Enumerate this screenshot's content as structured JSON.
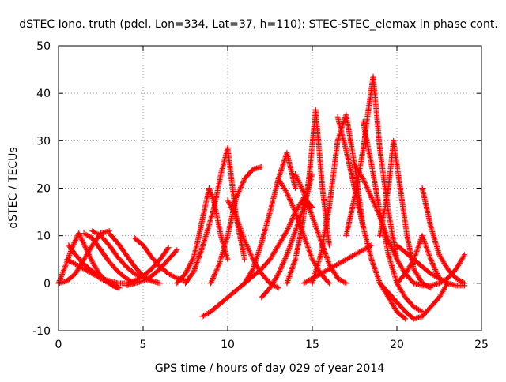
{
  "chart_data": {
    "type": "scatter",
    "title": "dSTEC Iono. truth (pdel, Lon=334, Lat=37, h=110): STEC-STEC_elemax in phase cont.",
    "xlabel": "GPS time / hours of day 029 of year 2014",
    "ylabel": "dSTEC  / TECUs",
    "xlim": [
      0,
      25
    ],
    "ylim": [
      -10,
      50
    ],
    "x_ticks": [
      0,
      5,
      10,
      15,
      20,
      25
    ],
    "y_ticks": [
      -10,
      0,
      10,
      20,
      30,
      40,
      50
    ],
    "grid": true,
    "legend": "none",
    "marker": "+",
    "color": "#ff0000",
    "series": [
      {
        "x": [
          0.0,
          0.4,
          0.8,
          1.2,
          1.6,
          2.0,
          2.4,
          2.8,
          3.2,
          3.6
        ],
        "y": [
          0.0,
          3.5,
          7.5,
          10.5,
          7.5,
          4.5,
          2.0,
          0.5,
          -0.5,
          -1.0
        ]
      },
      {
        "x": [
          0.0,
          0.5,
          1.0,
          1.5,
          2.0,
          2.5,
          3.0
        ],
        "y": [
          0.0,
          0.5,
          2.0,
          5.0,
          8.0,
          10.5,
          11.0
        ]
      },
      {
        "x": [
          0.6,
          1.0,
          1.5,
          2.0,
          2.5,
          3.0,
          3.5
        ],
        "y": [
          8.0,
          6.0,
          4.0,
          2.5,
          1.0,
          0.0,
          -1.0
        ]
      },
      {
        "x": [
          1.5,
          2.0,
          2.5,
          3.0,
          3.5,
          4.0,
          4.5
        ],
        "y": [
          10.5,
          9.5,
          7.0,
          4.5,
          2.5,
          1.0,
          0.0
        ]
      },
      {
        "x": [
          0.5,
          1.0,
          1.5,
          2.0,
          2.5,
          3.0,
          3.5
        ],
        "y": [
          5.0,
          4.0,
          3.0,
          2.0,
          1.0,
          0.5,
          0.0
        ]
      },
      {
        "x": [
          2.0,
          2.5,
          3.0,
          3.5,
          4.0,
          4.5,
          5.0,
          5.5
        ],
        "y": [
          11.0,
          10.0,
          8.0,
          5.5,
          3.5,
          2.0,
          1.0,
          0.5
        ]
      },
      {
        "x": [
          3.0,
          3.5,
          4.0,
          4.5,
          5.0,
          5.5,
          6.0
        ],
        "y": [
          10.5,
          8.5,
          6.0,
          3.5,
          1.5,
          0.5,
          0.0
        ]
      },
      {
        "x": [
          4.5,
          5.0,
          5.5,
          6.0,
          6.5,
          7.0,
          7.5
        ],
        "y": [
          9.5,
          8.0,
          5.5,
          3.5,
          2.0,
          1.0,
          0.5
        ]
      },
      {
        "x": [
          3.5,
          4.0,
          4.5,
          5.0,
          5.5,
          6.0,
          6.5
        ],
        "y": [
          0.0,
          0.0,
          0.5,
          1.5,
          3.0,
          5.0,
          7.5
        ]
      },
      {
        "x": [
          4.0,
          4.5,
          5.0,
          5.5,
          6.0,
          6.5,
          7.0
        ],
        "y": [
          -0.5,
          0.0,
          0.5,
          1.5,
          3.0,
          5.0,
          7.0
        ]
      },
      {
        "x": [
          7.5,
          8.0,
          8.4,
          8.8,
          9.2,
          9.6,
          10.0,
          10.5,
          11.0
        ],
        "y": [
          0.0,
          2.5,
          6.5,
          11.0,
          16.0,
          23.0,
          28.5,
          14.0,
          5.0
        ]
      },
      {
        "x": [
          7.0,
          7.5,
          8.0,
          8.3,
          8.6,
          8.9,
          9.2,
          9.6,
          10.0
        ],
        "y": [
          0.0,
          2.0,
          5.5,
          10.0,
          15.0,
          20.0,
          17.0,
          10.0,
          5.0
        ]
      },
      {
        "x": [
          8.5,
          9.0,
          9.5,
          10.0,
          10.5,
          11.0,
          11.5,
          12.0,
          12.5
        ],
        "y": [
          -7.0,
          -6.0,
          -4.5,
          -3.0,
          -1.5,
          0.0,
          1.5,
          3.0,
          5.0
        ]
      },
      {
        "x": [
          9.0,
          9.5,
          10.0,
          10.5,
          11.0,
          11.5,
          12.0
        ],
        "y": [
          0.0,
          4.0,
          10.0,
          18.0,
          22.0,
          24.0,
          24.5
        ]
      },
      {
        "x": [
          10.0,
          10.5,
          11.0,
          11.5,
          12.0,
          12.5,
          13.0
        ],
        "y": [
          17.5,
          14.0,
          9.0,
          5.0,
          2.0,
          0.0,
          -1.0
        ]
      },
      {
        "x": [
          11.0,
          11.5,
          12.0,
          12.5,
          13.0,
          13.5,
          14.0
        ],
        "y": [
          0.0,
          3.0,
          8.5,
          15.0,
          22.0,
          27.5,
          20.0
        ]
      },
      {
        "x": [
          12.0,
          12.5,
          13.0,
          13.5,
          14.0,
          14.5,
          15.0
        ],
        "y": [
          -3.0,
          -1.0,
          2.0,
          6.0,
          11.0,
          16.0,
          23.0
        ]
      },
      {
        "x": [
          12.5,
          13.0,
          13.5,
          14.0,
          14.5,
          15.0
        ],
        "y": [
          5.0,
          8.0,
          11.0,
          15.0,
          18.0,
          16.0
        ]
      },
      {
        "x": [
          13.0,
          13.5,
          14.0,
          14.5,
          15.0,
          15.5,
          16.0
        ],
        "y": [
          22.0,
          19.0,
          15.0,
          10.0,
          5.0,
          2.0,
          0.0
        ]
      },
      {
        "x": [
          13.5,
          14.0,
          14.4,
          14.8,
          15.2,
          15.6,
          16.0
        ],
        "y": [
          0.0,
          5.0,
          12.0,
          22.0,
          36.5,
          20.0,
          8.0
        ]
      },
      {
        "x": [
          14.0,
          14.5,
          15.0,
          15.5,
          16.0,
          16.5,
          17.0
        ],
        "y": [
          23.0,
          19.0,
          14.0,
          9.0,
          4.0,
          1.0,
          0.0
        ]
      },
      {
        "x": [
          15.0,
          15.5,
          16.0,
          16.5,
          17.0,
          17.5,
          18.0
        ],
        "y": [
          0.0,
          6.0,
          16.0,
          30.0,
          35.5,
          25.0,
          12.0
        ]
      },
      {
        "x": [
          14.5,
          15.0,
          15.5,
          16.0,
          16.5,
          17.0,
          17.5,
          18.0,
          18.5
        ],
        "y": [
          0.0,
          1.0,
          2.0,
          3.0,
          4.0,
          5.0,
          6.0,
          7.0,
          8.0
        ]
      },
      {
        "x": [
          16.5,
          17.0,
          17.5,
          18.0,
          18.5,
          19.0,
          19.5,
          20.0,
          20.5
        ],
        "y": [
          35.0,
          28.0,
          20.0,
          12.0,
          5.0,
          0.0,
          -3.0,
          -6.0,
          -7.5
        ]
      },
      {
        "x": [
          17.0,
          17.5,
          18.0,
          18.3,
          18.6,
          19.0,
          19.5,
          20.0
        ],
        "y": [
          10.0,
          18.0,
          28.0,
          36.0,
          43.5,
          28.0,
          15.0,
          5.0
        ]
      },
      {
        "x": [
          18.0,
          18.5,
          19.0,
          19.5,
          20.0,
          20.5,
          21.0,
          21.5
        ],
        "y": [
          34.0,
          25.0,
          15.0,
          6.0,
          0.0,
          -3.0,
          -5.0,
          -6.0
        ]
      },
      {
        "x": [
          19.0,
          19.5,
          19.8,
          20.2,
          20.6,
          21.0,
          21.5,
          22.0
        ],
        "y": [
          10.0,
          20.0,
          30.0,
          20.0,
          10.0,
          3.0,
          0.0,
          -1.0
        ]
      },
      {
        "x": [
          17.5,
          18.0,
          18.5,
          19.0,
          19.5,
          20.0,
          20.5,
          21.0
        ],
        "y": [
          25.0,
          22.0,
          18.0,
          14.0,
          9.0,
          5.0,
          2.0,
          0.0
        ]
      },
      {
        "x": [
          19.0,
          19.5,
          20.0,
          20.5,
          21.0,
          21.5,
          22.0,
          22.5,
          23.0
        ],
        "y": [
          0.0,
          -2.0,
          -4.0,
          -6.0,
          -7.5,
          -7.0,
          -5.0,
          -3.0,
          0.0
        ]
      },
      {
        "x": [
          20.0,
          20.5,
          21.0,
          21.5,
          22.0,
          22.5,
          23.0
        ],
        "y": [
          0.0,
          2.0,
          5.0,
          10.0,
          5.0,
          1.0,
          0.0
        ]
      },
      {
        "x": [
          21.5,
          22.0,
          22.5,
          23.0,
          23.5,
          24.0
        ],
        "y": [
          20.0,
          12.0,
          6.0,
          3.0,
          1.0,
          0.0
        ]
      },
      {
        "x": [
          21.0,
          21.5,
          22.0,
          22.5,
          23.0,
          23.5,
          24.0
        ],
        "y": [
          0.0,
          -0.5,
          -0.5,
          0.0,
          1.0,
          3.0,
          6.0
        ]
      },
      {
        "x": [
          20.0,
          20.5,
          21.0,
          21.5,
          22.0,
          22.5,
          23.0,
          23.5,
          24.0
        ],
        "y": [
          8.0,
          6.5,
          5.0,
          3.5,
          2.0,
          1.0,
          0.0,
          -0.5,
          -0.5
        ]
      }
    ]
  }
}
